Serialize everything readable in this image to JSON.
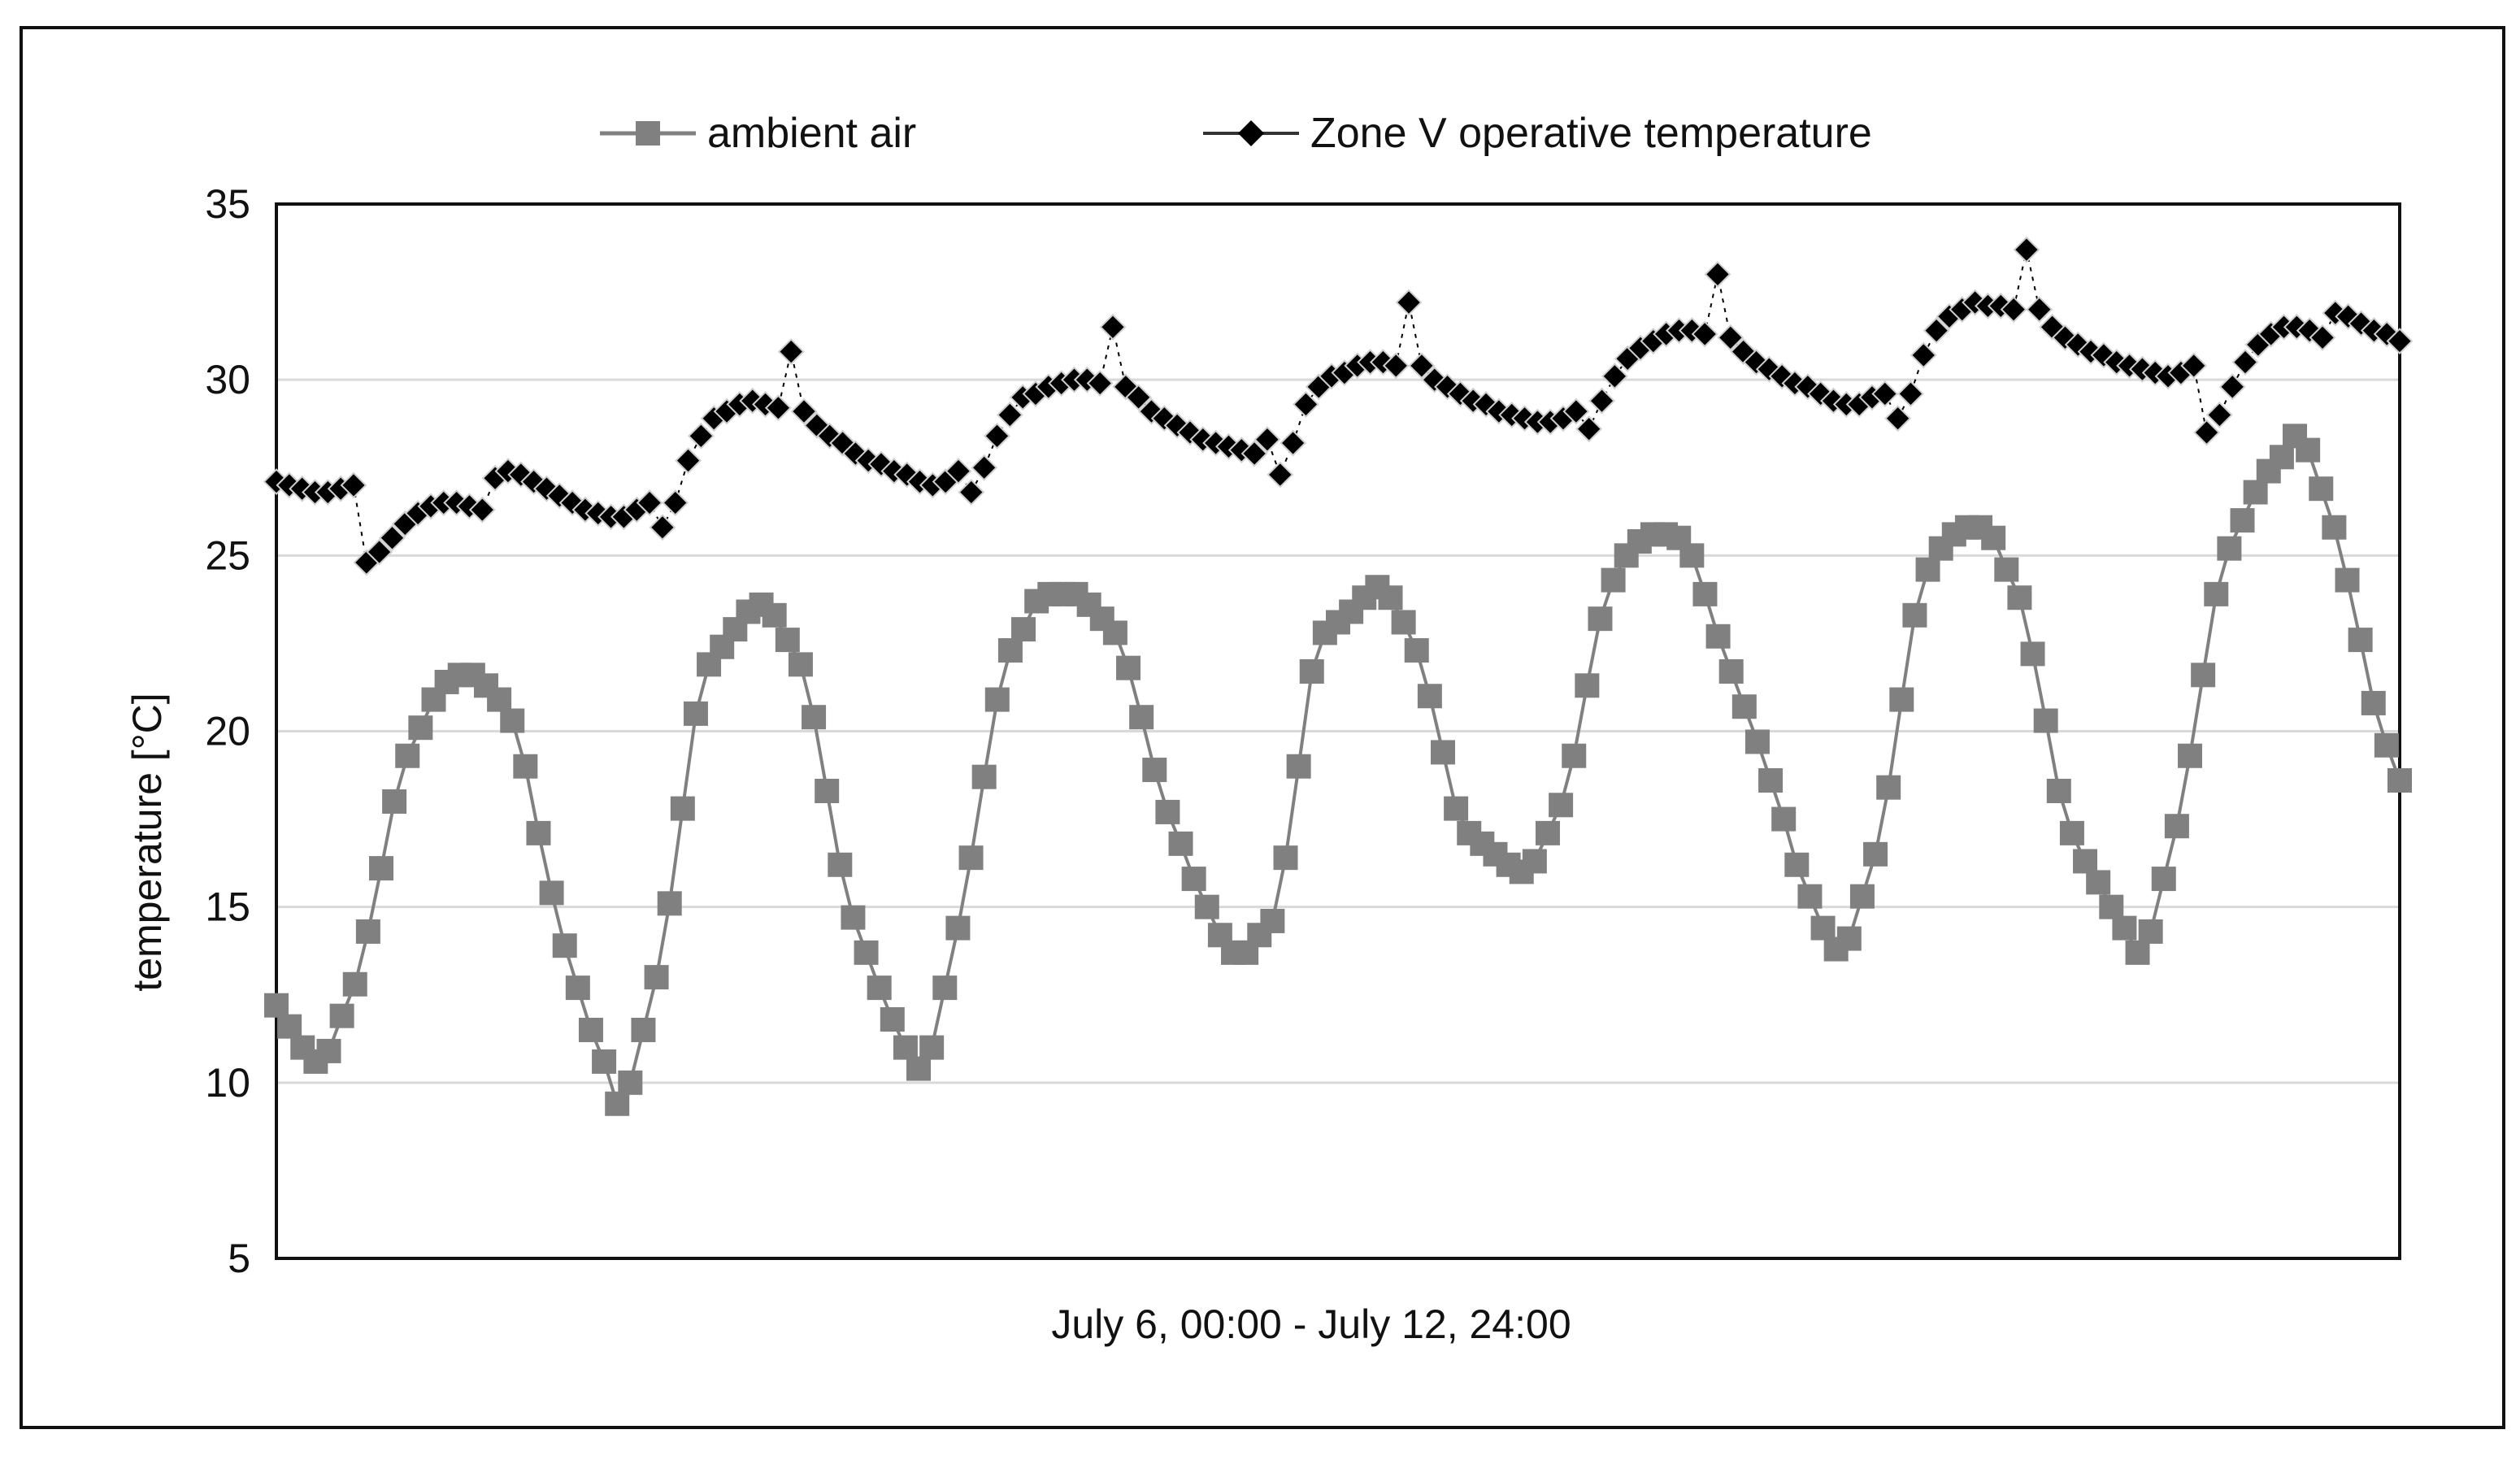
{
  "chart_data": {
    "type": "line",
    "title": "",
    "xlabel": "July 6, 00:00 - July 12, 24:00",
    "ylabel": "temperature  [°C]",
    "ylim": [
      5,
      35
    ],
    "yticks": [
      5,
      10,
      15,
      20,
      25,
      30,
      35
    ],
    "grid": true,
    "legend_position": "top-center",
    "colors": {
      "ambient": "#808080",
      "zone": "#000000",
      "grid": "#d9d9d9"
    },
    "series": [
      {
        "name": "ambient air",
        "marker": "square",
        "values": [
          12.2,
          11.6,
          11.0,
          10.6,
          10.9,
          11.9,
          12.8,
          14.3,
          16.1,
          18.0,
          19.3,
          20.1,
          20.9,
          21.4,
          21.6,
          21.6,
          21.3,
          20.9,
          20.3,
          19.0,
          17.1,
          15.4,
          13.9,
          12.7,
          11.5,
          10.6,
          9.4,
          10.0,
          11.5,
          13.0,
          15.1,
          17.8,
          20.5,
          21.9,
          22.4,
          22.9,
          23.4,
          23.6,
          23.3,
          22.6,
          21.9,
          20.4,
          18.3,
          16.2,
          14.7,
          13.7,
          12.7,
          11.8,
          11.0,
          10.4,
          11.0,
          12.7,
          14.4,
          16.4,
          18.7,
          20.9,
          22.3,
          22.9,
          23.7,
          23.9,
          23.9,
          23.9,
          23.6,
          23.2,
          22.8,
          21.8,
          20.4,
          18.9,
          17.7,
          16.8,
          15.8,
          15.0,
          14.2,
          13.7,
          13.7,
          14.2,
          14.6,
          16.4,
          19.0,
          21.7,
          22.8,
          23.1,
          23.4,
          23.8,
          24.1,
          23.8,
          23.1,
          22.3,
          21.0,
          19.4,
          17.8,
          17.1,
          16.8,
          16.5,
          16.2,
          16.0,
          16.3,
          17.1,
          17.9,
          19.3,
          21.3,
          23.2,
          24.3,
          25.0,
          25.4,
          25.6,
          25.6,
          25.5,
          25.0,
          23.9,
          22.7,
          21.7,
          20.7,
          19.7,
          18.6,
          17.5,
          16.2,
          15.3,
          14.4,
          13.8,
          14.1,
          15.3,
          16.5,
          18.4,
          20.9,
          23.3,
          24.6,
          25.2,
          25.6,
          25.8,
          25.8,
          25.5,
          24.6,
          23.8,
          22.2,
          20.3,
          18.3,
          17.1,
          16.3,
          15.7,
          15.0,
          14.4,
          13.7,
          14.3,
          15.8,
          17.3,
          19.3,
          21.6,
          23.9,
          25.2,
          26.0,
          26.8,
          27.4,
          27.8,
          28.4,
          28.0,
          26.9,
          25.8,
          24.3,
          22.6,
          20.8,
          19.6,
          18.6
        ]
      },
      {
        "name": "Zone V operative temperature",
        "marker": "diamond",
        "values": [
          27.1,
          27.0,
          26.9,
          26.8,
          26.8,
          26.9,
          27.0,
          24.8,
          25.1,
          25.5,
          25.9,
          26.2,
          26.4,
          26.5,
          26.5,
          26.4,
          26.3,
          27.2,
          27.4,
          27.3,
          27.1,
          26.9,
          26.7,
          26.5,
          26.3,
          26.2,
          26.1,
          26.1,
          26.3,
          26.5,
          25.8,
          26.5,
          27.7,
          28.4,
          28.9,
          29.1,
          29.3,
          29.4,
          29.3,
          29.2,
          30.8,
          29.1,
          28.7,
          28.4,
          28.2,
          27.9,
          27.7,
          27.6,
          27.4,
          27.3,
          27.1,
          27.0,
          27.1,
          27.4,
          26.8,
          27.5,
          28.4,
          29.0,
          29.5,
          29.6,
          29.8,
          29.9,
          30.0,
          30.0,
          29.9,
          31.5,
          29.8,
          29.5,
          29.1,
          28.9,
          28.7,
          28.5,
          28.3,
          28.2,
          28.1,
          28.0,
          27.9,
          28.3,
          27.3,
          28.2,
          29.3,
          29.8,
          30.1,
          30.2,
          30.4,
          30.5,
          30.5,
          30.4,
          32.2,
          30.4,
          30.0,
          29.8,
          29.6,
          29.4,
          29.3,
          29.1,
          29.0,
          28.9,
          28.8,
          28.8,
          28.9,
          29.1,
          28.6,
          29.4,
          30.1,
          30.6,
          30.9,
          31.1,
          31.3,
          31.4,
          31.4,
          31.3,
          33.0,
          31.2,
          30.8,
          30.5,
          30.3,
          30.1,
          29.9,
          29.8,
          29.6,
          29.4,
          29.3,
          29.3,
          29.5,
          29.6,
          28.9,
          29.6,
          30.7,
          31.4,
          31.8,
          32.0,
          32.2,
          32.1,
          32.1,
          32.0,
          33.7,
          32.0,
          31.5,
          31.2,
          31.0,
          30.8,
          30.7,
          30.5,
          30.4,
          30.3,
          30.2,
          30.1,
          30.2,
          30.4,
          28.5,
          29.0,
          29.8,
          30.5,
          31.0,
          31.3,
          31.5,
          31.5,
          31.4,
          31.2,
          31.9,
          31.8,
          31.6,
          31.4,
          31.3,
          31.1
        ]
      }
    ]
  }
}
